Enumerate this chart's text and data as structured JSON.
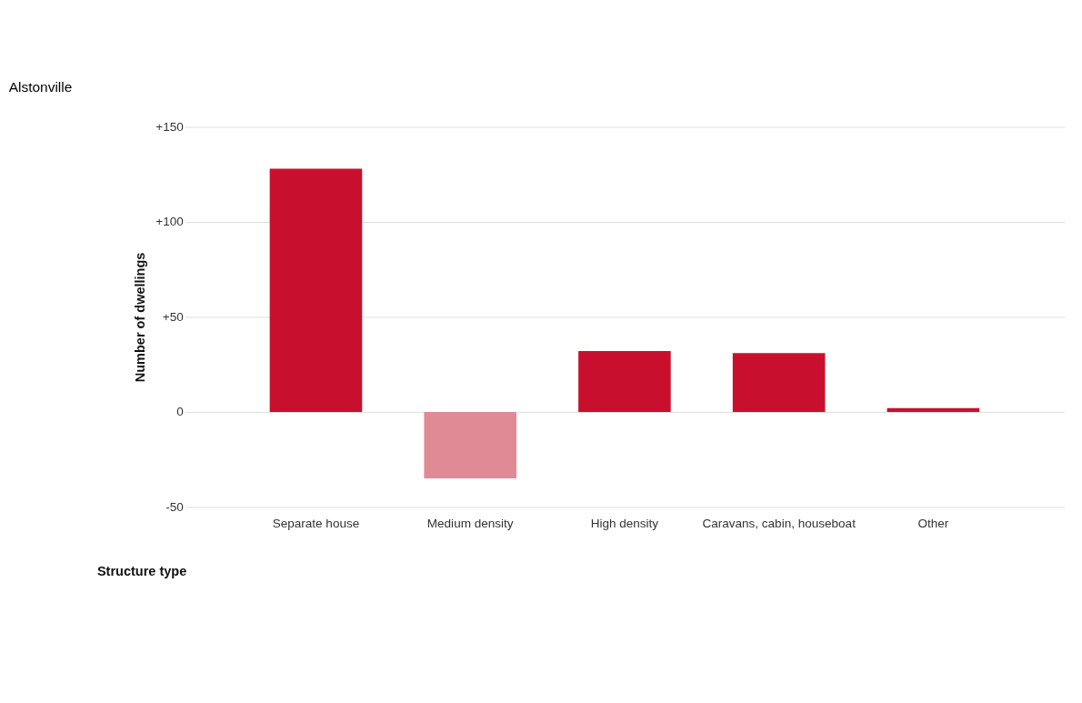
{
  "chart_data": {
    "type": "bar",
    "title": "Alstonville",
    "categories": [
      "Separate house",
      "Medium density",
      "High density",
      "Caravans, cabin, houseboat",
      "Other"
    ],
    "values": [
      128,
      -35,
      32,
      31,
      2
    ],
    "colors": [
      "#c8102e",
      "#e08a96",
      "#c8102e",
      "#c8102e",
      "#c8102e"
    ],
    "xlabel": "Structure type",
    "ylabel": "Number of dwellings",
    "ylim": [
      -50,
      150
    ],
    "yticks": [
      {
        "value": -50,
        "label": "-50"
      },
      0,
      {
        "value": 50,
        "label": "+50"
      },
      {
        "value": 100,
        "label": "+100"
      },
      {
        "value": 150,
        "label": "+150"
      }
    ],
    "grid": "y"
  }
}
